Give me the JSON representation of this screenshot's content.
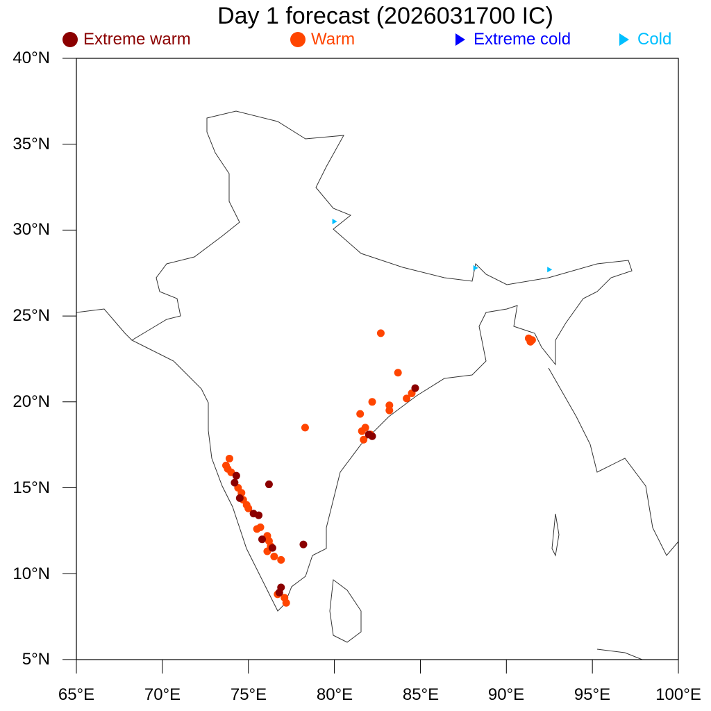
{
  "title": "Day 1 forecast (2026031700 IC)",
  "legend": [
    {
      "label": "Extreme warm",
      "symbol": "circle",
      "color": "#8b0000"
    },
    {
      "label": "Warm",
      "symbol": "circle",
      "color": "#ff4500"
    },
    {
      "label": "Extreme cold",
      "symbol": "triangle",
      "color": "#0000ff"
    },
    {
      "label": "Cold",
      "symbol": "triangle",
      "color": "#00bfff"
    }
  ],
  "axes": {
    "y_ticks": [
      "40°N",
      "35°N",
      "30°N",
      "25°N",
      "20°N",
      "15°N",
      "10°N",
      "5°N"
    ],
    "x_ticks": [
      "65°E",
      "70°E",
      "75°E",
      "80°E",
      "85°E",
      "90°E",
      "95°E",
      "100°E"
    ],
    "lon_range": [
      65,
      100
    ],
    "lat_range": [
      5,
      40
    ]
  },
  "points": {
    "extreme_warm": [
      [
        74.3,
        15.7
      ],
      [
        74.2,
        15.3
      ],
      [
        74.5,
        14.4
      ],
      [
        75.3,
        13.5
      ],
      [
        75.6,
        13.4
      ],
      [
        76.2,
        15.2
      ],
      [
        75.8,
        12.0
      ],
      [
        76.4,
        11.5
      ],
      [
        78.2,
        11.7
      ],
      [
        76.9,
        9.2
      ],
      [
        76.8,
        8.9
      ],
      [
        82.2,
        18.0
      ],
      [
        82.0,
        18.1
      ],
      [
        84.7,
        20.8
      ]
    ],
    "warm": [
      [
        73.9,
        16.7
      ],
      [
        73.8,
        16.1
      ],
      [
        74.0,
        15.9
      ],
      [
        73.7,
        16.3
      ],
      [
        74.4,
        15.0
      ],
      [
        74.6,
        14.7
      ],
      [
        74.7,
        14.3
      ],
      [
        74.9,
        14.0
      ],
      [
        75.0,
        13.8
      ],
      [
        75.5,
        12.6
      ],
      [
        75.7,
        12.7
      ],
      [
        76.1,
        12.2
      ],
      [
        76.2,
        11.9
      ],
      [
        76.3,
        11.6
      ],
      [
        76.1,
        11.3
      ],
      [
        76.5,
        11.0
      ],
      [
        76.9,
        10.8
      ],
      [
        76.7,
        8.8
      ],
      [
        77.1,
        8.6
      ],
      [
        77.2,
        8.3
      ],
      [
        78.3,
        18.5
      ],
      [
        81.5,
        19.3
      ],
      [
        81.6,
        18.3
      ],
      [
        81.8,
        18.5
      ],
      [
        82.1,
        18.1
      ],
      [
        81.7,
        17.8
      ],
      [
        82.2,
        20.0
      ],
      [
        82.7,
        24.0
      ],
      [
        83.7,
        21.7
      ],
      [
        83.2,
        19.8
      ],
      [
        83.2,
        19.5
      ],
      [
        84.2,
        20.2
      ],
      [
        84.5,
        20.5
      ],
      [
        91.3,
        23.7
      ],
      [
        91.4,
        23.5
      ],
      [
        91.5,
        23.6
      ]
    ],
    "extreme_cold": [],
    "cold": [
      [
        80.0,
        30.5
      ],
      [
        88.2,
        27.8
      ],
      [
        92.5,
        27.7
      ]
    ]
  }
}
